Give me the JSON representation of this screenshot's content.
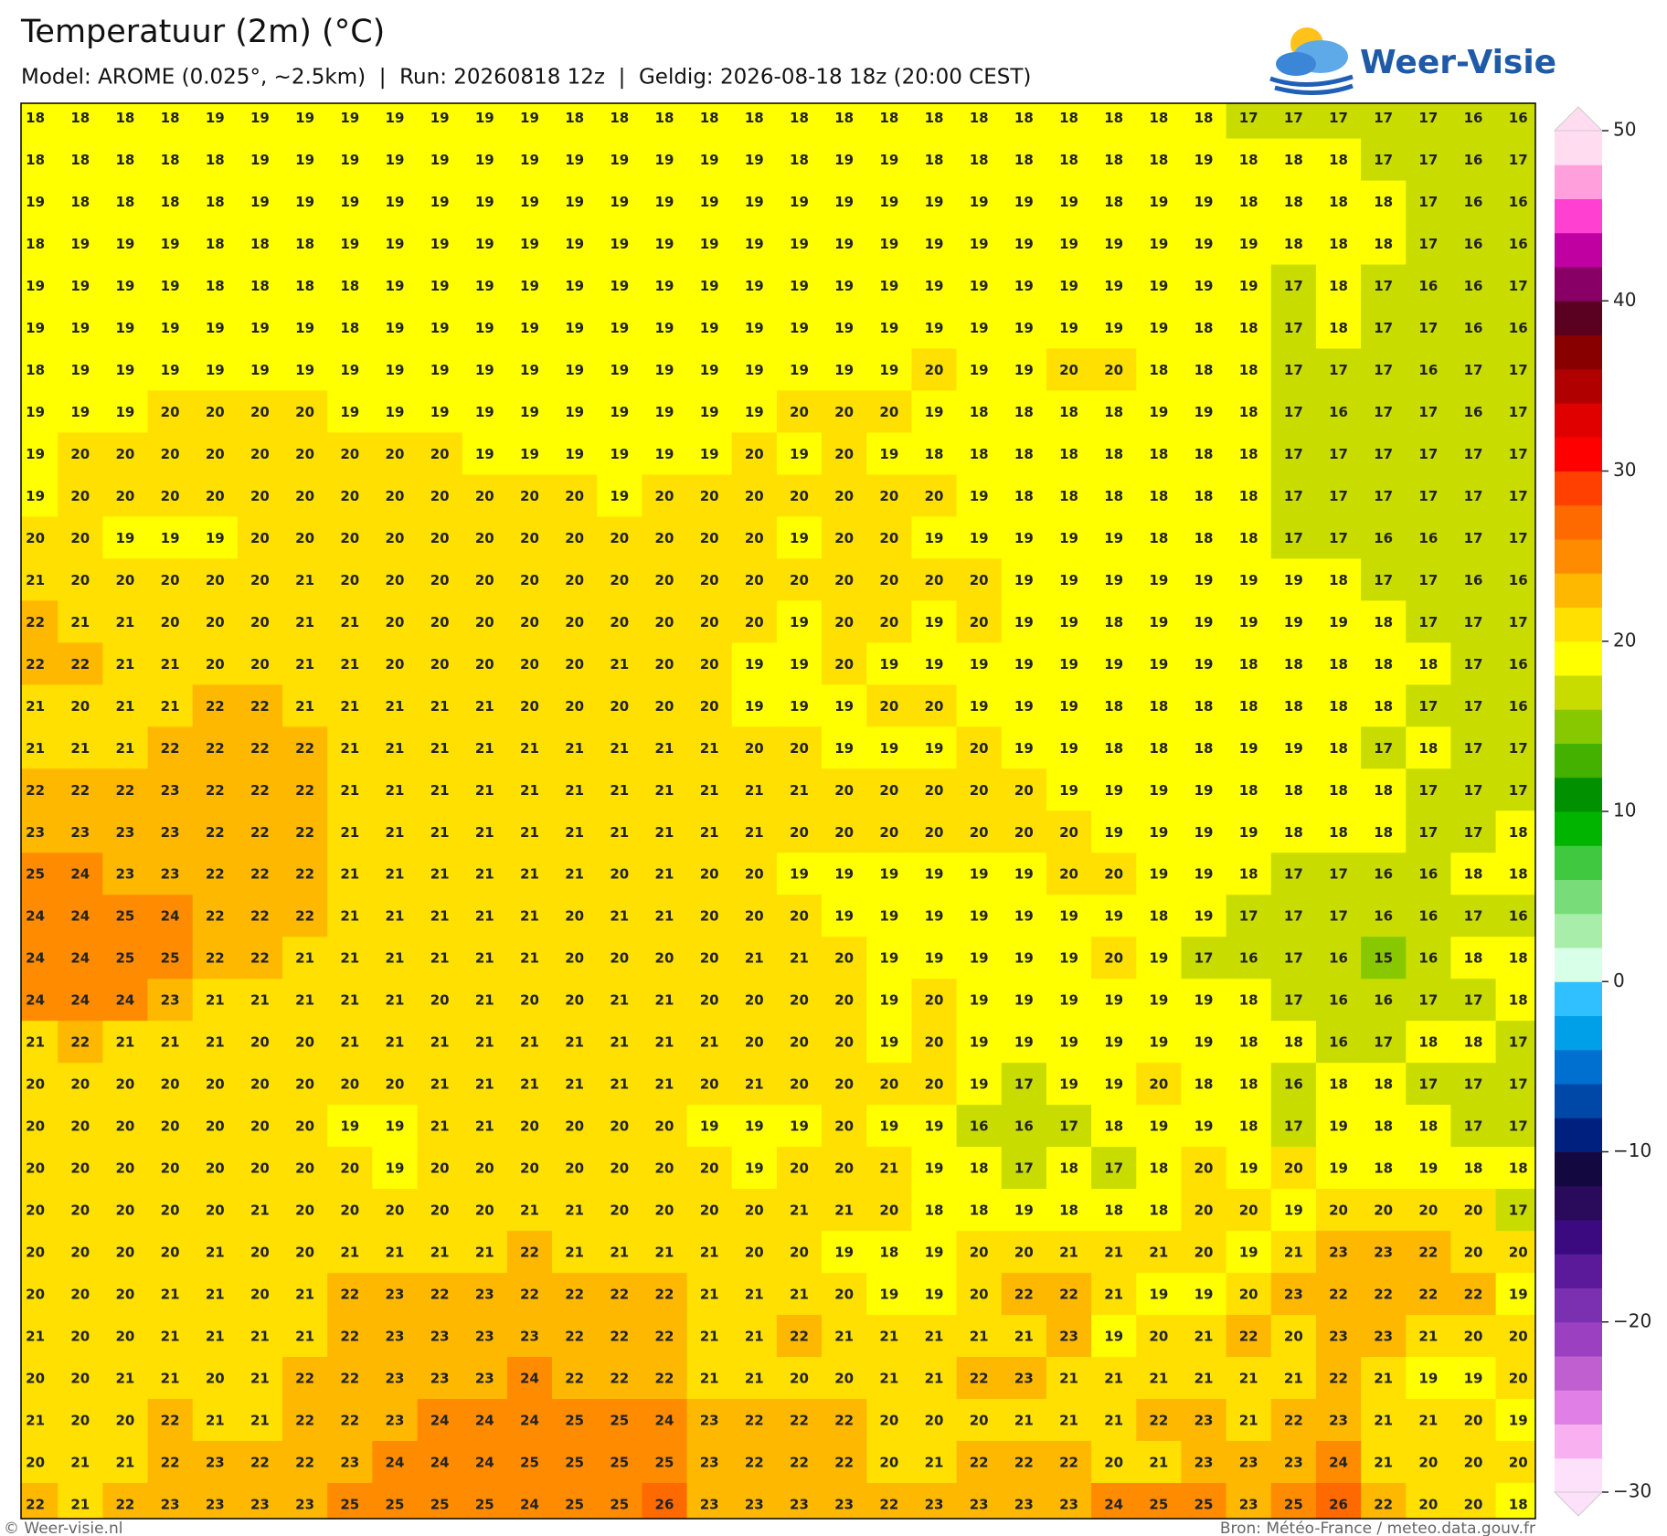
{
  "header": {
    "title": "Temperatuur (2m) (°C)",
    "subtitle": "Model: AROME (0.025°, ~2.5km)  |  Run: 20260818 12z  |  Geldig: 2026-08-18 18z (20:00 CEST)",
    "logo": "Weer-Visie"
  },
  "grid": {
    "values": [
      [
        18,
        18,
        18,
        18,
        19,
        19,
        19,
        19,
        19,
        19,
        19,
        19,
        18,
        18,
        18,
        18,
        18,
        18,
        18,
        18,
        18,
        18,
        18,
        18,
        18,
        18,
        18,
        17,
        17,
        17,
        17,
        17,
        16,
        16
      ],
      [
        18,
        18,
        18,
        18,
        18,
        19,
        19,
        19,
        19,
        19,
        19,
        19,
        19,
        19,
        19,
        19,
        19,
        18,
        19,
        19,
        18,
        18,
        18,
        18,
        18,
        18,
        19,
        18,
        18,
        18,
        17,
        17,
        16,
        17
      ],
      [
        19,
        18,
        18,
        18,
        18,
        19,
        19,
        19,
        19,
        19,
        19,
        19,
        19,
        19,
        19,
        19,
        19,
        19,
        19,
        19,
        19,
        19,
        19,
        19,
        18,
        19,
        19,
        18,
        18,
        18,
        18,
        17,
        16,
        16
      ],
      [
        18,
        19,
        19,
        19,
        18,
        18,
        18,
        19,
        19,
        19,
        19,
        19,
        19,
        19,
        19,
        19,
        19,
        19,
        19,
        19,
        19,
        19,
        19,
        19,
        19,
        19,
        19,
        19,
        18,
        18,
        18,
        17,
        16,
        16
      ],
      [
        19,
        19,
        19,
        19,
        18,
        18,
        18,
        18,
        19,
        19,
        19,
        19,
        19,
        19,
        19,
        19,
        19,
        19,
        19,
        19,
        19,
        19,
        19,
        19,
        19,
        19,
        19,
        19,
        17,
        18,
        17,
        16,
        16,
        17
      ],
      [
        19,
        19,
        19,
        19,
        19,
        19,
        19,
        18,
        19,
        19,
        19,
        19,
        19,
        19,
        19,
        19,
        19,
        19,
        19,
        19,
        19,
        19,
        19,
        19,
        19,
        19,
        18,
        18,
        17,
        18,
        17,
        17,
        16,
        16
      ],
      [
        18,
        19,
        19,
        19,
        19,
        19,
        19,
        19,
        19,
        19,
        19,
        19,
        19,
        19,
        19,
        19,
        19,
        19,
        19,
        19,
        20,
        19,
        19,
        20,
        20,
        18,
        18,
        18,
        17,
        17,
        17,
        16,
        17,
        17
      ],
      [
        19,
        19,
        19,
        20,
        20,
        20,
        20,
        19,
        19,
        19,
        19,
        19,
        19,
        19,
        19,
        19,
        19,
        20,
        20,
        20,
        19,
        18,
        18,
        18,
        18,
        19,
        19,
        18,
        17,
        16,
        17,
        17,
        16,
        17
      ],
      [
        19,
        20,
        20,
        20,
        20,
        20,
        20,
        20,
        20,
        20,
        19,
        19,
        19,
        19,
        19,
        19,
        20,
        19,
        20,
        19,
        18,
        18,
        18,
        18,
        18,
        18,
        18,
        18,
        17,
        17,
        17,
        17,
        17,
        17
      ],
      [
        19,
        20,
        20,
        20,
        20,
        20,
        20,
        20,
        20,
        20,
        20,
        20,
        20,
        19,
        20,
        20,
        20,
        20,
        20,
        20,
        20,
        19,
        18,
        18,
        18,
        18,
        18,
        18,
        17,
        17,
        17,
        17,
        17,
        17
      ],
      [
        20,
        20,
        19,
        19,
        19,
        20,
        20,
        20,
        20,
        20,
        20,
        20,
        20,
        20,
        20,
        20,
        20,
        19,
        20,
        20,
        19,
        19,
        19,
        19,
        19,
        18,
        18,
        18,
        17,
        17,
        16,
        16,
        17,
        17
      ],
      [
        21,
        20,
        20,
        20,
        20,
        20,
        21,
        20,
        20,
        20,
        20,
        20,
        20,
        20,
        20,
        20,
        20,
        20,
        20,
        20,
        20,
        20,
        19,
        19,
        19,
        19,
        19,
        19,
        19,
        18,
        17,
        17,
        16,
        16
      ],
      [
        22,
        21,
        21,
        20,
        20,
        20,
        21,
        21,
        20,
        20,
        20,
        20,
        20,
        20,
        20,
        20,
        20,
        19,
        20,
        20,
        19,
        20,
        19,
        19,
        18,
        19,
        19,
        19,
        19,
        19,
        18,
        17,
        17,
        17
      ],
      [
        22,
        22,
        21,
        21,
        20,
        20,
        21,
        21,
        20,
        20,
        20,
        20,
        20,
        21,
        20,
        20,
        19,
        19,
        20,
        19,
        19,
        19,
        19,
        19,
        19,
        19,
        19,
        18,
        18,
        18,
        18,
        18,
        17,
        16
      ],
      [
        21,
        20,
        21,
        21,
        22,
        22,
        21,
        21,
        21,
        21,
        21,
        20,
        20,
        20,
        20,
        20,
        19,
        19,
        19,
        20,
        20,
        19,
        19,
        19,
        18,
        18,
        18,
        18,
        18,
        18,
        18,
        17,
        17,
        16
      ],
      [
        21,
        21,
        21,
        22,
        22,
        22,
        22,
        21,
        21,
        21,
        21,
        21,
        21,
        21,
        21,
        21,
        20,
        20,
        19,
        19,
        19,
        20,
        19,
        19,
        18,
        18,
        18,
        19,
        19,
        18,
        17,
        18,
        17,
        17
      ],
      [
        22,
        22,
        22,
        23,
        22,
        22,
        22,
        21,
        21,
        21,
        21,
        21,
        21,
        21,
        21,
        21,
        21,
        21,
        20,
        20,
        20,
        20,
        20,
        19,
        19,
        19,
        19,
        18,
        18,
        18,
        18,
        17,
        17,
        17
      ],
      [
        23,
        23,
        23,
        23,
        22,
        22,
        22,
        21,
        21,
        21,
        21,
        21,
        21,
        21,
        21,
        21,
        21,
        20,
        20,
        20,
        20,
        20,
        20,
        20,
        19,
        19,
        19,
        19,
        18,
        18,
        18,
        17,
        17,
        18
      ],
      [
        25,
        24,
        23,
        23,
        22,
        22,
        22,
        21,
        21,
        21,
        21,
        21,
        21,
        20,
        21,
        20,
        20,
        19,
        19,
        19,
        19,
        19,
        19,
        20,
        20,
        19,
        19,
        18,
        17,
        17,
        16,
        16,
        18,
        18
      ],
      [
        24,
        24,
        25,
        24,
        22,
        22,
        22,
        21,
        21,
        21,
        21,
        21,
        20,
        21,
        21,
        20,
        20,
        20,
        19,
        19,
        19,
        19,
        19,
        19,
        19,
        18,
        19,
        17,
        17,
        17,
        16,
        16,
        17,
        16
      ],
      [
        24,
        24,
        25,
        25,
        22,
        22,
        21,
        21,
        21,
        21,
        21,
        21,
        20,
        20,
        20,
        20,
        21,
        21,
        20,
        19,
        19,
        19,
        19,
        19,
        20,
        19,
        17,
        16,
        17,
        16,
        15,
        16,
        18,
        18
      ],
      [
        24,
        24,
        24,
        23,
        21,
        21,
        21,
        21,
        21,
        20,
        21,
        20,
        20,
        21,
        21,
        20,
        20,
        20,
        20,
        19,
        20,
        19,
        19,
        19,
        19,
        19,
        19,
        18,
        17,
        16,
        16,
        17,
        17,
        18
      ],
      [
        21,
        22,
        21,
        21,
        21,
        20,
        20,
        21,
        21,
        21,
        21,
        21,
        21,
        21,
        21,
        21,
        20,
        20,
        20,
        19,
        20,
        19,
        19,
        19,
        19,
        19,
        19,
        18,
        18,
        16,
        17,
        18,
        18,
        17
      ],
      [
        20,
        20,
        20,
        20,
        20,
        20,
        20,
        20,
        20,
        21,
        21,
        21,
        21,
        21,
        21,
        20,
        21,
        20,
        20,
        20,
        20,
        19,
        17,
        19,
        19,
        20,
        18,
        18,
        16,
        18,
        18,
        17,
        17,
        17
      ],
      [
        20,
        20,
        20,
        20,
        20,
        20,
        20,
        19,
        19,
        21,
        21,
        20,
        20,
        20,
        20,
        19,
        19,
        19,
        20,
        19,
        19,
        16,
        16,
        17,
        18,
        19,
        19,
        18,
        17,
        19,
        18,
        18,
        17,
        17
      ],
      [
        20,
        20,
        20,
        20,
        20,
        20,
        20,
        20,
        19,
        20,
        20,
        20,
        20,
        20,
        20,
        20,
        19,
        20,
        20,
        21,
        19,
        18,
        17,
        18,
        17,
        18,
        20,
        19,
        20,
        19,
        18,
        19,
        18,
        18
      ],
      [
        20,
        20,
        20,
        20,
        20,
        21,
        20,
        20,
        20,
        20,
        20,
        21,
        21,
        20,
        20,
        20,
        20,
        21,
        21,
        20,
        18,
        18,
        19,
        18,
        18,
        18,
        20,
        20,
        19,
        20,
        20,
        20,
        20,
        17
      ],
      [
        20,
        20,
        20,
        20,
        21,
        20,
        20,
        21,
        21,
        21,
        21,
        22,
        21,
        21,
        21,
        21,
        20,
        20,
        19,
        18,
        19,
        20,
        20,
        21,
        21,
        21,
        20,
        19,
        21,
        23,
        23,
        22,
        20,
        20
      ],
      [
        20,
        20,
        20,
        21,
        21,
        20,
        21,
        22,
        23,
        22,
        23,
        22,
        22,
        22,
        22,
        21,
        21,
        21,
        20,
        19,
        19,
        20,
        22,
        22,
        21,
        19,
        19,
        20,
        23,
        22,
        22,
        22,
        22,
        19
      ],
      [
        21,
        20,
        20,
        21,
        21,
        21,
        21,
        22,
        23,
        23,
        23,
        23,
        22,
        22,
        22,
        21,
        21,
        22,
        21,
        21,
        21,
        21,
        21,
        23,
        19,
        20,
        21,
        22,
        20,
        23,
        23,
        21,
        20,
        20
      ],
      [
        20,
        20,
        21,
        21,
        20,
        21,
        22,
        22,
        23,
        23,
        23,
        24,
        22,
        22,
        22,
        21,
        21,
        20,
        20,
        21,
        21,
        22,
        23,
        21,
        21,
        21,
        21,
        21,
        21,
        22,
        21,
        19,
        19,
        20
      ],
      [
        21,
        20,
        20,
        22,
        21,
        21,
        22,
        22,
        23,
        24,
        24,
        24,
        25,
        25,
        24,
        23,
        22,
        22,
        22,
        20,
        20,
        20,
        21,
        21,
        21,
        22,
        23,
        21,
        22,
        23,
        21,
        21,
        20,
        19
      ],
      [
        20,
        21,
        21,
        22,
        23,
        22,
        22,
        23,
        24,
        24,
        24,
        25,
        25,
        25,
        25,
        23,
        22,
        22,
        22,
        20,
        21,
        22,
        22,
        22,
        20,
        21,
        23,
        23,
        23,
        24,
        21,
        20,
        20,
        20
      ],
      [
        22,
        21,
        22,
        23,
        23,
        23,
        23,
        25,
        25,
        25,
        25,
        24,
        25,
        25,
        26,
        23,
        23,
        23,
        23,
        22,
        23,
        23,
        23,
        23,
        24,
        25,
        25,
        23,
        25,
        26,
        22,
        20,
        20,
        18
      ]
    ]
  },
  "colorbar": {
    "lim": [
      -30,
      50
    ],
    "ticks": [
      {
        "value": -30,
        "label": "−30"
      },
      {
        "value": -20,
        "label": "−20"
      },
      {
        "value": -10,
        "label": "−10"
      },
      0,
      10,
      20,
      30,
      40,
      50
    ],
    "colors": [
      "#fde0fa",
      "#f8b0f0",
      "#e080e6",
      "#c060d0",
      "#9a40c0",
      "#7a30b0",
      "#5a1a9a",
      "#3c0a80",
      "#2a0a5a",
      "#140840",
      "#002080",
      "#0048a8",
      "#0070d0",
      "#00a0e8",
      "#30c0ff",
      "#d8ffe8",
      "#a8eeaa",
      "#78dc78",
      "#40c840",
      "#00b400",
      "#009000",
      "#44b000",
      "#88c800",
      "#c8dc00",
      "#ffff00",
      "#ffe000",
      "#ffb800",
      "#ff8c00",
      "#ff6a00",
      "#ff4000",
      "#ff0000",
      "#e00000",
      "#b00000",
      "#880000",
      "#5a0020",
      "#880066",
      "#c000a0",
      "#ff40d0",
      "#ffa0dc",
      "#ffdcf0"
    ]
  },
  "footer": {
    "left": "© Weer-visie.nl",
    "right": "Bron: Météo-France / meteo.data.gouv.fr"
  }
}
